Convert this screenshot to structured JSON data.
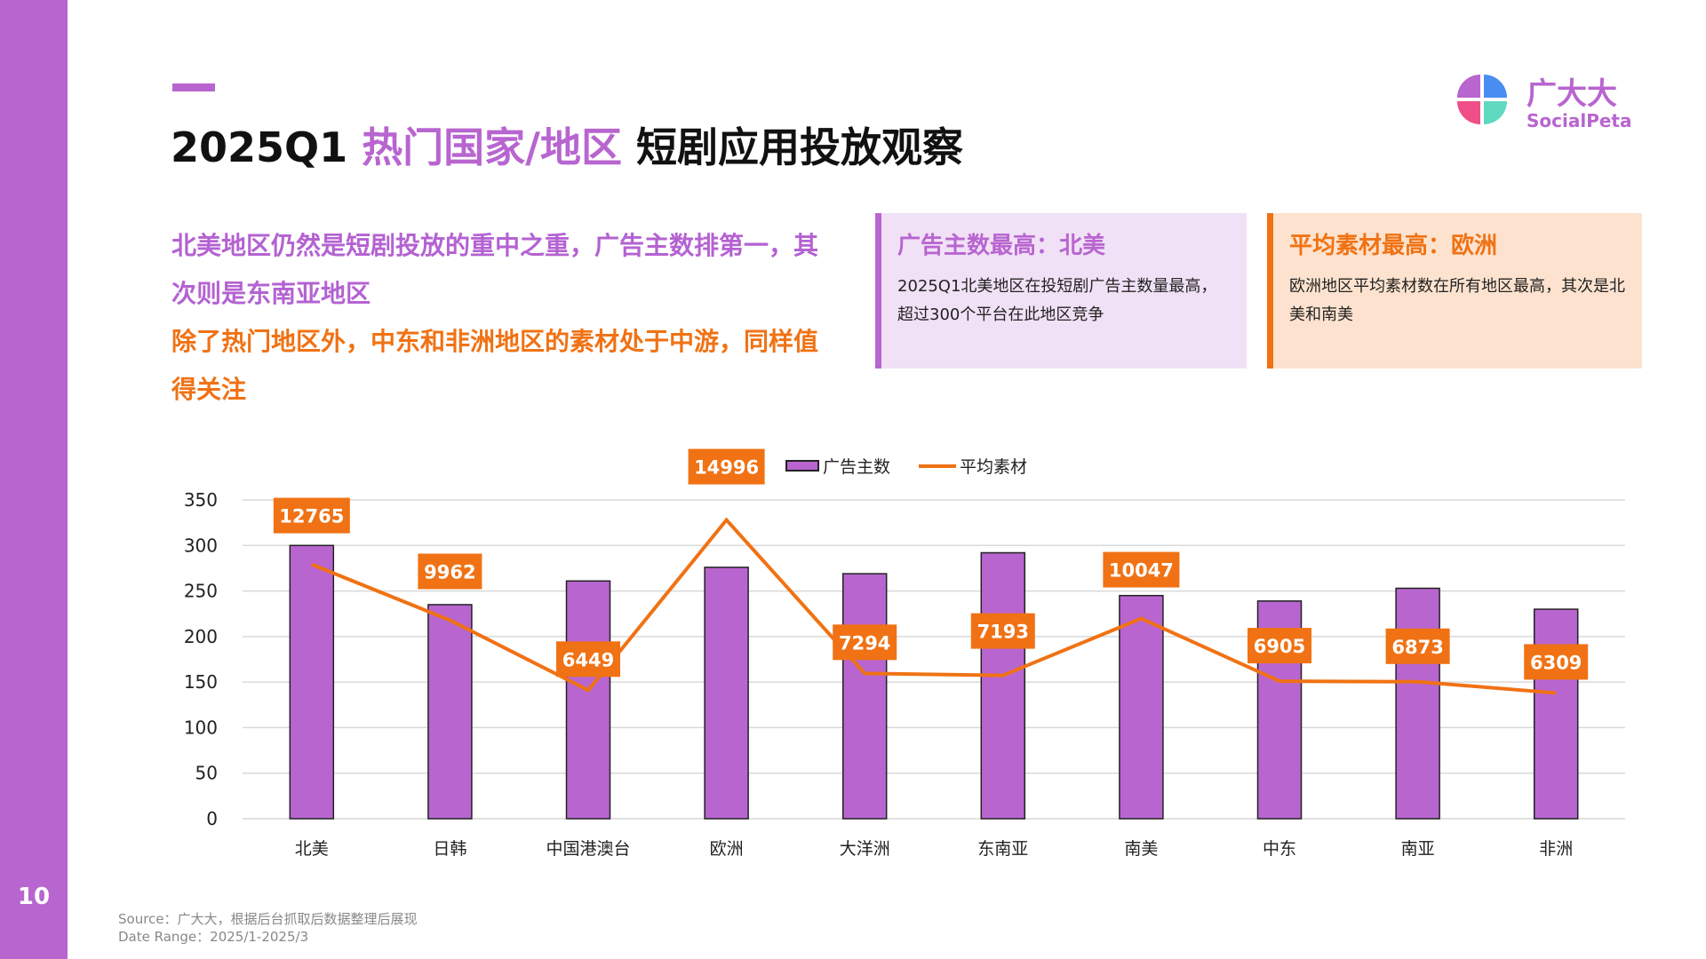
{
  "page_number": "10",
  "title": {
    "prefix": "2025Q1",
    "highlight": "热门国家/地区",
    "suffix": "短剧应用投放观察"
  },
  "logo": {
    "cn": "广大大",
    "en": "SocialPeta"
  },
  "intro": {
    "line1": "北美地区仍然是短剧投放的重中之重，广告主数排第一，其次则是东南亚地区",
    "line2": "除了热门地区外，中东和非洲地区的素材处于中游，同样值得关注"
  },
  "cards": [
    {
      "title": "广告主数最高：北美",
      "body": "2025Q1北美地区在投短剧广告主数量最高，超过300个平台在此地区竞争"
    },
    {
      "title": "平均素材最高：欧洲",
      "body": "欧洲地区平均素材数在所有地区最高，其次是北美和南美"
    }
  ],
  "source": "Source：广大大，根据后台抓取后数据整理后展现",
  "date_range": "Date Range：2025/1-2025/3",
  "colors": {
    "bar": "#b865d0",
    "line": "#f07214"
  },
  "chart_data": {
    "type": "bar+line",
    "categories": [
      "北美",
      "日韩",
      "中国港澳台",
      "欧洲",
      "大洋洲",
      "东南亚",
      "南美",
      "中东",
      "南亚",
      "非洲"
    ],
    "series": [
      {
        "name": "广告主数",
        "type": "bar",
        "axis": "left",
        "values": [
          300,
          235,
          261,
          276,
          269,
          292,
          245,
          239,
          253,
          230
        ]
      },
      {
        "name": "平均素材",
        "type": "line",
        "axis": "right-hidden",
        "values": [
          12765,
          9962,
          6449,
          14996,
          7294,
          7193,
          10047,
          6905,
          6873,
          6309
        ]
      }
    ],
    "yticks": [
      "0",
      "50",
      "100",
      "150",
      "200",
      "250",
      "300",
      "350"
    ],
    "ylim": [
      0,
      350
    ],
    "y2lim": [
      0,
      16000
    ],
    "grid": true,
    "legend": "top"
  }
}
